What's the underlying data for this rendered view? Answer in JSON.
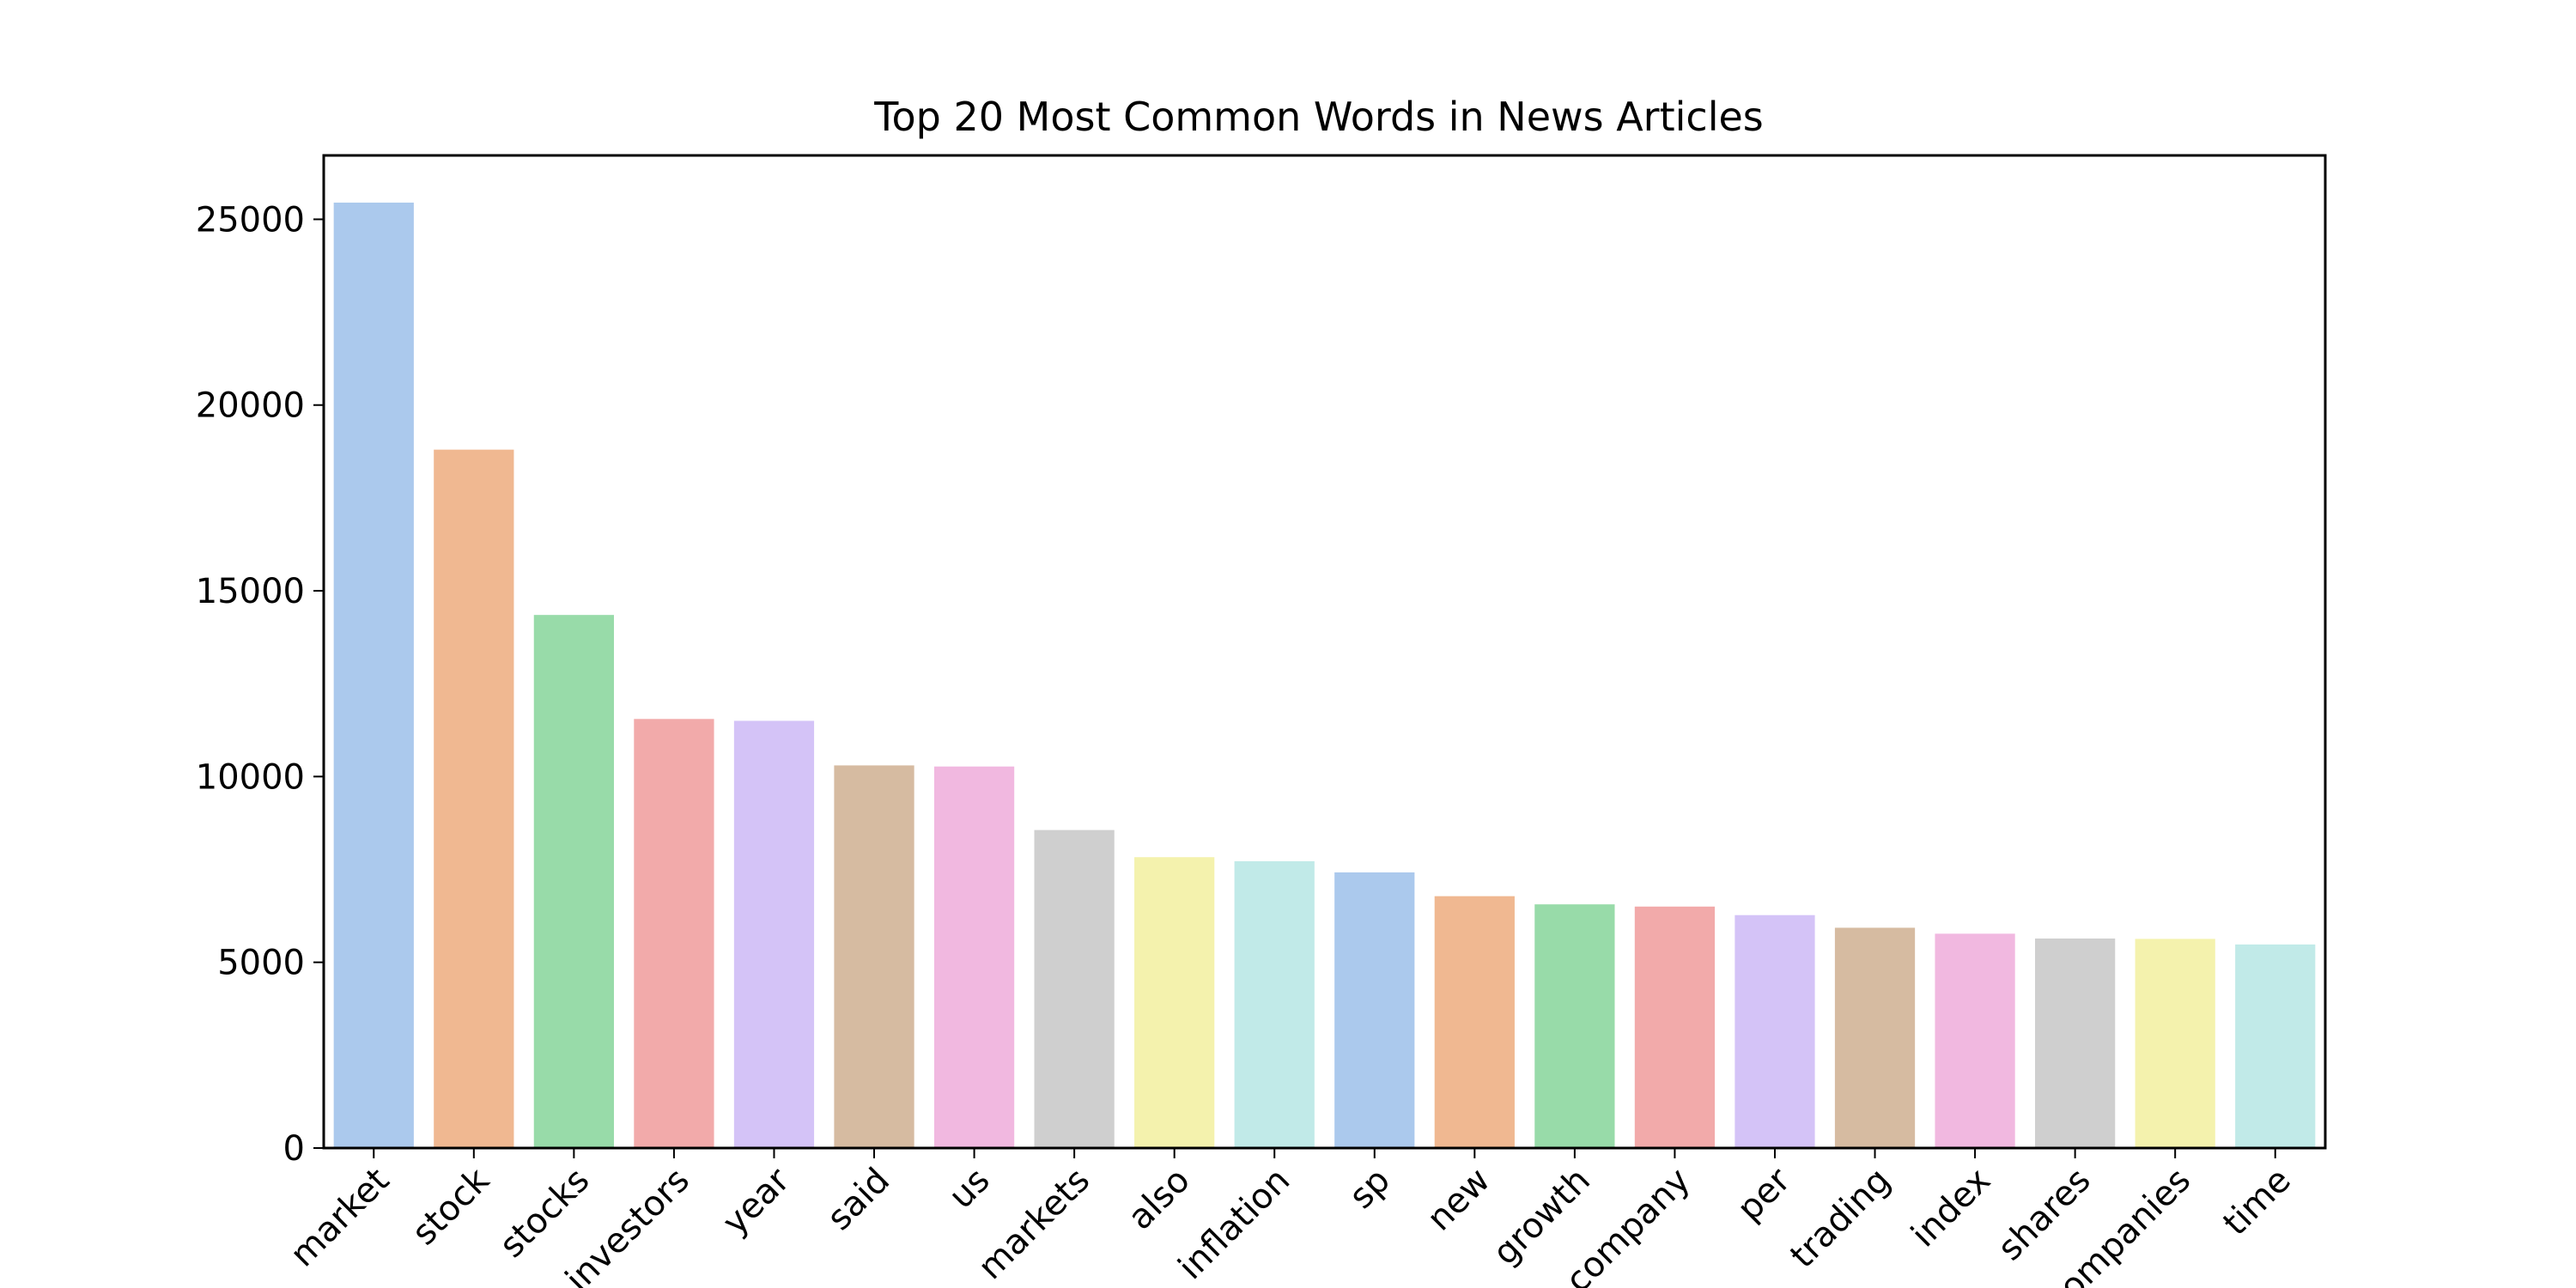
{
  "chart_data": {
    "type": "bar",
    "title": "Top 20 Most Common Words in News Articles",
    "xlabel": "",
    "ylabel": "",
    "categories": [
      "market",
      "stock",
      "stocks",
      "investors",
      "year",
      "said",
      "us",
      "markets",
      "also",
      "inflation",
      "sp",
      "new",
      "growth",
      "company",
      "per",
      "trading",
      "index",
      "shares",
      "companies",
      "time"
    ],
    "values": [
      25450,
      18800,
      14350,
      11550,
      11500,
      10300,
      10270,
      8560,
      7830,
      7720,
      7420,
      6780,
      6560,
      6500,
      6270,
      5930,
      5770,
      5640,
      5630,
      5480
    ],
    "colors": [
      "#abc9ed",
      "#f0b891",
      "#98dba9",
      "#f2aaaa",
      "#d4c3f7",
      "#d6bba1",
      "#f1b8e0",
      "#cfcfcf",
      "#f4f2ad",
      "#c1eae8",
      "#abc9ed",
      "#f0b891",
      "#98dba9",
      "#f2aaaa",
      "#d4c3f7",
      "#d6bba1",
      "#f1b8e0",
      "#cfcfcf",
      "#f4f2ad",
      "#c1eae8"
    ],
    "yticks": [
      0,
      5000,
      10000,
      15000,
      20000,
      25000
    ],
    "ylim": [
      0,
      26720
    ],
    "grid": false,
    "legend": "none",
    "xtick_rotation": 45
  }
}
